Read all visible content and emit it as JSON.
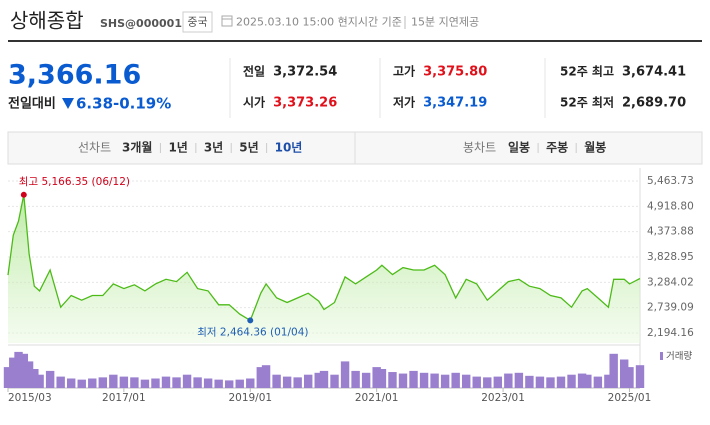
{
  "header": {
    "title": "상해종합",
    "code": "SHS@000001",
    "market": "중국",
    "time": "2025.03.10 15:00 현지시간 기준",
    "delay": "15분 지연제공"
  },
  "quote": {
    "price": "3,366.16",
    "change_label": "전일대비",
    "change": "6.38",
    "change_pct": "-0.19%",
    "color": "#0a5bd0"
  },
  "stats": [
    {
      "label": "전일",
      "value": "3,372.54",
      "color": "#222222"
    },
    {
      "label": "고가",
      "value": "3,375.80",
      "color": "#e0111b"
    },
    {
      "label": "52주 최고",
      "value": "3,674.41",
      "color": "#222222"
    },
    {
      "label": "시가",
      "value": "3,373.26",
      "color": "#e0111b"
    },
    {
      "label": "저가",
      "value": "3,347.19",
      "color": "#0a5bd0"
    },
    {
      "label": "52주 최저",
      "value": "2,689.70",
      "color": "#222222"
    }
  ],
  "tabs": {
    "line_label": "선차트",
    "line_options": [
      "3개월",
      "1년",
      "3년",
      "5년",
      "10년"
    ],
    "selected_index": 4,
    "candle_label": "봉차트",
    "candle_options": [
      "일봉",
      "주봉",
      "월봉"
    ]
  },
  "chart_data": {
    "type": "line",
    "x": [
      "2015/03",
      "2015/04",
      "2015/05",
      "2015/06",
      "2015/07",
      "2015/08",
      "2015/09",
      "2015/11",
      "2016/01",
      "2016/03",
      "2016/05",
      "2016/07",
      "2016/09",
      "2016/11",
      "2017/01",
      "2017/03",
      "2017/05",
      "2017/07",
      "2017/09",
      "2017/11",
      "2018/01",
      "2018/03",
      "2018/05",
      "2018/07",
      "2018/09",
      "2018/11",
      "2019/01",
      "2019/03",
      "2019/04",
      "2019/06",
      "2019/08",
      "2019/10",
      "2019/12",
      "2020/02",
      "2020/03",
      "2020/05",
      "2020/07",
      "2020/09",
      "2020/11",
      "2021/01",
      "2021/02",
      "2021/04",
      "2021/06",
      "2021/08",
      "2021/10",
      "2021/12",
      "2022/02",
      "2022/04",
      "2022/06",
      "2022/08",
      "2022/10",
      "2022/12",
      "2023/02",
      "2023/04",
      "2023/06",
      "2023/08",
      "2023/10",
      "2023/12",
      "2024/02",
      "2024/04",
      "2024/05",
      "2024/07",
      "2024/09",
      "2024/10",
      "2024/12",
      "2025/01",
      "2025/03"
    ],
    "series": [
      {
        "name": "상해종합",
        "color": "#4cbb17",
        "values": [
          3440,
          4300,
          4600,
          5166.35,
          3900,
          3200,
          3100,
          3550,
          2750,
          3000,
          2900,
          3000,
          3000,
          3250,
          3150,
          3230,
          3100,
          3250,
          3350,
          3300,
          3500,
          3150,
          3100,
          2800,
          2800,
          2600,
          2464.36,
          3050,
          3250,
          2950,
          2850,
          2950,
          3050,
          2880,
          2700,
          2850,
          3400,
          3250,
          3400,
          3550,
          3650,
          3450,
          3600,
          3550,
          3550,
          3650,
          3450,
          2950,
          3350,
          3250,
          2900,
          3100,
          3300,
          3350,
          3200,
          3150,
          3000,
          2950,
          2750,
          3100,
          3150,
          2950,
          2750,
          3350,
          3350,
          3250,
          3366.16
        ]
      },
      {
        "name": "거래량",
        "color": "#9a7fcf",
        "axis": "volume",
        "values": [
          55,
          80,
          95,
          90,
          70,
          50,
          35,
          45,
          30,
          25,
          22,
          25,
          28,
          35,
          30,
          28,
          22,
          25,
          30,
          28,
          35,
          28,
          25,
          22,
          20,
          22,
          25,
          55,
          60,
          35,
          30,
          28,
          35,
          40,
          45,
          35,
          70,
          45,
          40,
          55,
          50,
          42,
          38,
          45,
          40,
          38,
          35,
          40,
          35,
          30,
          28,
          30,
          38,
          40,
          32,
          30,
          28,
          30,
          35,
          38,
          35,
          30,
          35,
          90,
          75,
          55,
          60
        ]
      }
    ],
    "ylim": [
      1979,
      5657
    ],
    "yticks": [
      {
        "value": 2194.16,
        "label": "2,194.16"
      },
      {
        "value": 2739.09,
        "label": "2,739.09"
      },
      {
        "value": 3284.02,
        "label": "3,284.02"
      },
      {
        "value": 3828.95,
        "label": "3,828.95"
      },
      {
        "value": 4373.88,
        "label": "4,373.88"
      },
      {
        "value": 4918.8,
        "label": "4,918.80"
      },
      {
        "value": 5463.73,
        "label": "5,463.73"
      }
    ],
    "volume_lim": [
      0,
      100
    ],
    "xlim": [
      "2015/03",
      "2025/03"
    ],
    "xticks": [
      "2015/03",
      "2017/01",
      "2019/01",
      "2021/01",
      "2023/01",
      "2025/01"
    ],
    "grid": true,
    "annotations": [
      {
        "label": "최고 5,166.35 (06/12)",
        "x": "2015/06",
        "value": 5166.35,
        "color": "#d0021b"
      },
      {
        "label": "최저 2,464.36 (01/04)",
        "x": "2019/01",
        "value": 2464.36,
        "color": "#1f5fb4"
      }
    ]
  }
}
